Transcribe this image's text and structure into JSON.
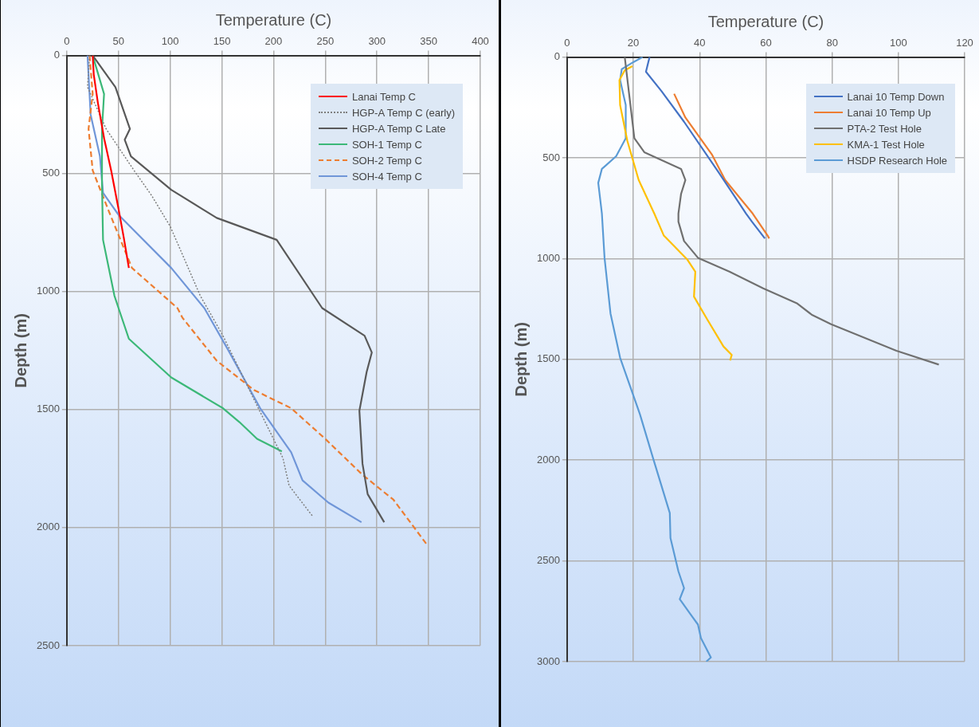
{
  "chart_data": [
    {
      "type": "line",
      "xlabel": "Temperature (C)",
      "ylabel": "Depth (m)",
      "xlim": [
        0,
        400
      ],
      "xticks": [
        0,
        50,
        100,
        150,
        200,
        250,
        300,
        350,
        400
      ],
      "ylim": [
        2500,
        0
      ],
      "yticks": [
        0,
        500,
        1000,
        1500,
        2000,
        2500
      ],
      "grid": true,
      "legend": "top right",
      "marker": "none",
      "series": [
        {
          "name": "Lanai Temp C",
          "color": "#ff0000",
          "line_style": "solid",
          "x": [
            25,
            26,
            30,
            36,
            43,
            50,
            55,
            60
          ],
          "values": [
            0,
            80,
            200,
            350,
            490,
            650,
            770,
            900
          ]
        },
        {
          "name": "HGP-A Temp C (early)",
          "color": "#7f7f7f",
          "line_style": "dotted",
          "x": [
            22,
            20,
            38,
            65,
            82,
            100,
            129,
            151,
            184,
            209,
            215,
            238
          ],
          "values": [
            0,
            134,
            311,
            487,
            593,
            724,
            1017,
            1187,
            1483,
            1705,
            1822,
            1953
          ]
        },
        {
          "name": "HGP-A Temp C Late",
          "color": "#595959",
          "line_style": "solid",
          "x": [
            25,
            47,
            61,
            56,
            62,
            101,
            145,
            203,
            247,
            288,
            295,
            290,
            283,
            286,
            291,
            307
          ],
          "values": [
            0,
            134,
            311,
            357,
            427,
            569,
            688,
            781,
            1070,
            1187,
            1258,
            1341,
            1505,
            1729,
            1858,
            1977
          ]
        },
        {
          "name": "SOH-1 Temp C",
          "color": "#3cb878",
          "line_style": "solid",
          "x": [
            25,
            36,
            34,
            34,
            35,
            46,
            50,
            60,
            101,
            151,
            167,
            184,
            208
          ],
          "values": [
            0,
            163,
            311,
            546,
            781,
            1017,
            1070,
            1200,
            1364,
            1494,
            1553,
            1624,
            1677
          ]
        },
        {
          "name": "SOH-2 Temp C",
          "color": "#ed7d31",
          "line_style": "dashed",
          "x": [
            22,
            25,
            21,
            25,
            41,
            63,
            107,
            112,
            145,
            181,
            217,
            250,
            286,
            316,
            348
          ],
          "values": [
            0,
            163,
            311,
            487,
            664,
            900,
            1070,
            1112,
            1293,
            1417,
            1494,
            1624,
            1776,
            1882,
            2070
          ]
        },
        {
          "name": "SOH-4 Temp C",
          "color": "#7096d8",
          "line_style": "solid",
          "x": [
            20,
            23,
            32,
            35,
            50,
            101,
            133,
            156,
            187,
            217,
            228,
            253,
            285
          ],
          "values": [
            0,
            250,
            427,
            582,
            675,
            900,
            1070,
            1247,
            1494,
            1681,
            1800,
            1894,
            1977
          ]
        }
      ]
    },
    {
      "type": "line",
      "xlabel": "Temperature (C)",
      "ylabel": "Depth (m)",
      "xlim": [
        0,
        120
      ],
      "xticks": [
        0,
        20,
        40,
        60,
        80,
        100,
        120
      ],
      "ylim": [
        3000,
        0
      ],
      "yticks": [
        0,
        500,
        1000,
        1500,
        2000,
        2500,
        3000
      ],
      "grid": true,
      "legend": "top right",
      "marker": "none",
      "series": [
        {
          "name": "Lanai 10 Temp Down",
          "color": "#4472c4",
          "line_style": "solid",
          "x": [
            24.9,
            23.8,
            28.5,
            35.3,
            45.6,
            54,
            55.8,
            59.7
          ],
          "values": [
            0,
            73,
            169,
            321,
            569,
            776,
            817,
            900
          ]
        },
        {
          "name": "Lanai 10 Temp Up",
          "color": "#ed7d31",
          "line_style": "solid",
          "x": [
            32.3,
            35.7,
            43.8,
            47.7,
            56,
            60.5,
            61
          ],
          "values": [
            182,
            300,
            486,
            610,
            776,
            885,
            900
          ]
        },
        {
          "name": "PTA-2 Test Hole",
          "color": "#707070",
          "line_style": "solid",
          "x": [
            17.4,
            20.3,
            23.3,
            34.4,
            35.7,
            34.4,
            33.6,
            33.6,
            35.3,
            39.5,
            49,
            59.2,
            69.5,
            73.8,
            79.7,
            99.4,
            112.2
          ],
          "values": [
            0,
            403,
            472,
            555,
            610,
            679,
            776,
            817,
            913,
            996,
            1065,
            1148,
            1223,
            1278,
            1326,
            1457,
            1526
          ]
        },
        {
          "name": "KMA-1 Test Hole",
          "color": "#ffc000",
          "line_style": "solid",
          "x": [
            19.7,
            17.4,
            15.8,
            16,
            18.2,
            21.6,
            26.3,
            29.2,
            36.2,
            38.7,
            38.3,
            42.2,
            47.2,
            49.7,
            49.2
          ],
          "values": [
            45,
            66,
            114,
            238,
            417,
            610,
            776,
            886,
            1003,
            1065,
            1189,
            1299,
            1436,
            1478,
            1505
          ]
        },
        {
          "name": "HSDP Research Hole",
          "color": "#5b9bd5",
          "line_style": "solid",
          "x": [
            22.8,
            20,
            16.5,
            16,
            17.7,
            17.7,
            14.8,
            10.5,
            9.4,
            10.5,
            11.3,
            13.1,
            16,
            22,
            25.9,
            31,
            31.2,
            33.6,
            35.3,
            34,
            37,
            39.5,
            40.4,
            43.4,
            42
          ],
          "values": [
            0,
            25,
            60,
            114,
            238,
            403,
            492,
            555,
            624,
            776,
            996,
            1272,
            1492,
            1773,
            1988,
            2263,
            2387,
            2552,
            2635,
            2690,
            2759,
            2816,
            2883,
            2979,
            3000
          ]
        }
      ]
    }
  ]
}
